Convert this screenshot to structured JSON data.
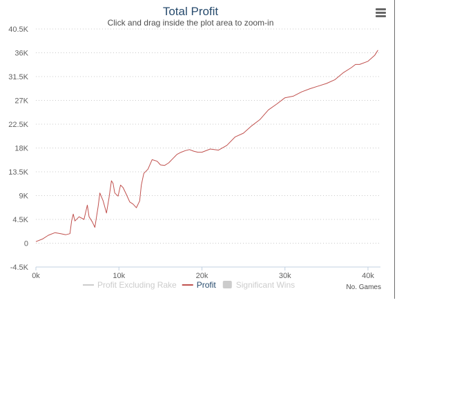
{
  "chart_data": {
    "type": "line",
    "title": "Total Profit",
    "subtitle": "Click and drag inside the plot area to zoom-in",
    "xlabel": "No. Games",
    "ylabel": "",
    "xlim": [
      0,
      41500
    ],
    "ylim": [
      -4500,
      40500
    ],
    "x_ticks": [
      "0k",
      "10k",
      "20k",
      "30k",
      "40k"
    ],
    "y_ticks": [
      "-4.5K",
      "0",
      "4.5K",
      "9K",
      "13.5K",
      "18K",
      "22.5K",
      "27K",
      "31.5K",
      "36K",
      "40.5K"
    ],
    "grid": true,
    "legend_position": "bottom",
    "series": [
      {
        "name": "Profit",
        "color": "#c0504d",
        "x": [
          0,
          800,
          1500,
          2300,
          3000,
          3600,
          4100,
          4300,
          4500,
          4700,
          5200,
          5800,
          6200,
          6400,
          6800,
          7100,
          7300,
          7500,
          7700,
          8100,
          8500,
          8800,
          9100,
          9300,
          9500,
          9900,
          10200,
          10500,
          10900,
          11300,
          11700,
          12100,
          12500,
          12700,
          13000,
          13500,
          14000,
          14600,
          15000,
          15500,
          16000,
          16500,
          17000,
          17500,
          18000,
          18500,
          19000,
          19500,
          20000,
          21000,
          22000,
          23000,
          24000,
          25000,
          26000,
          27000,
          28000,
          29000,
          30000,
          31000,
          32000,
          33000,
          34000,
          35000,
          36000,
          37000,
          38000,
          38500,
          39000,
          40000,
          40800,
          41200
        ],
        "values": [
          300,
          800,
          1500,
          2000,
          1800,
          1600,
          1800,
          4200,
          5500,
          4200,
          5000,
          4500,
          7200,
          5000,
          4000,
          3000,
          5000,
          7000,
          9500,
          8000,
          5700,
          8500,
          11800,
          11300,
          9500,
          8900,
          11000,
          10500,
          9200,
          7800,
          7400,
          6700,
          8000,
          11000,
          13200,
          14000,
          15800,
          15500,
          14800,
          14700,
          15200,
          16000,
          16800,
          17200,
          17500,
          17700,
          17400,
          17200,
          17200,
          17800,
          17600,
          18500,
          20100,
          20800,
          22200,
          23400,
          25200,
          26300,
          27500,
          27800,
          28600,
          29200,
          29700,
          30200,
          30900,
          32200,
          33200,
          33800,
          33800,
          34400,
          35500,
          36500
        ]
      }
    ],
    "legend": [
      {
        "name": "Profit Excluding Rake",
        "color": "#cccccc",
        "visible": false,
        "symbol": "line"
      },
      {
        "name": "Profit",
        "color": "#c0504d",
        "text_color": "#274b6d",
        "visible": true,
        "symbol": "line"
      },
      {
        "name": "Significant Wins",
        "color": "#cccccc",
        "visible": false,
        "symbol": "box"
      }
    ]
  },
  "menu": {
    "icon": "hamburger-menu-icon",
    "color": "#666666"
  }
}
